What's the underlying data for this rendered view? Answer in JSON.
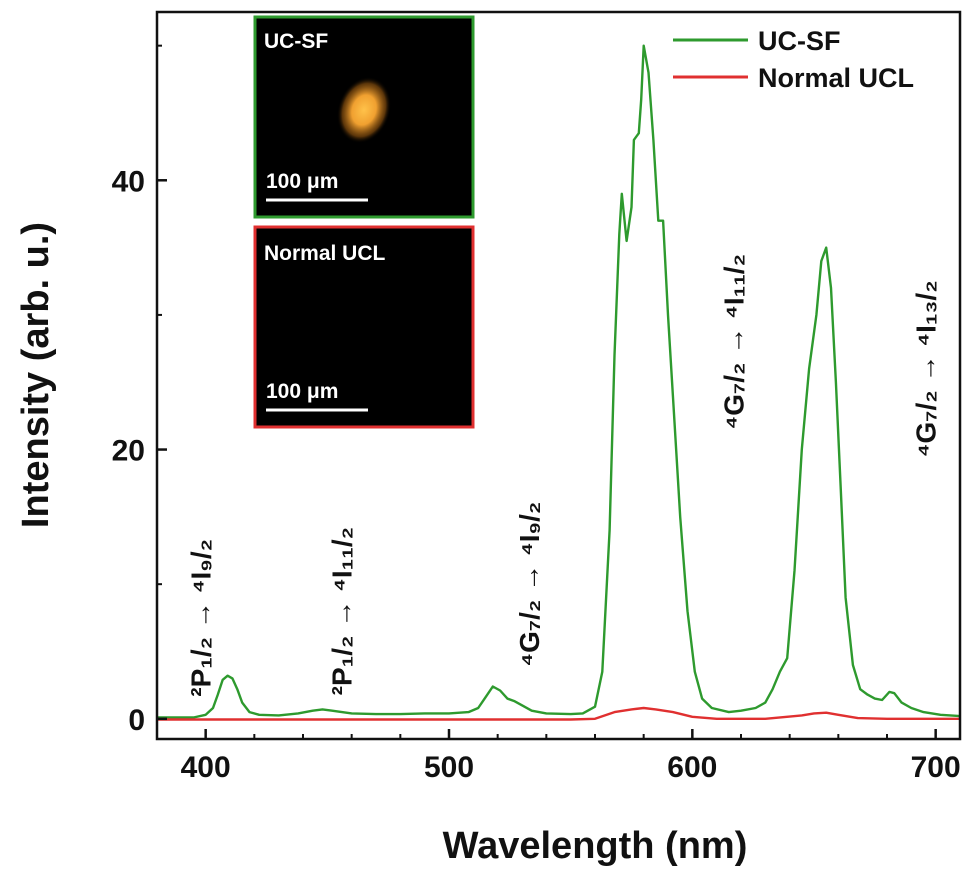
{
  "chart_data": {
    "type": "line",
    "xlabel": "Wavelength (nm)",
    "ylabel": "Intensity (arb. u.)",
    "xlim": [
      380,
      710
    ],
    "ylim": [
      -1.5,
      52.5
    ],
    "x_ticks": [
      400,
      500,
      600,
      700
    ],
    "y_ticks": [
      0,
      20,
      40
    ],
    "grid": false,
    "legend_position": "top-right",
    "series": [
      {
        "name": "UC-SF",
        "color": "#2e9a2e",
        "points": [
          [
            380,
            0.1
          ],
          [
            395,
            0.1
          ],
          [
            400,
            0.3
          ],
          [
            403,
            0.8
          ],
          [
            405,
            1.8
          ],
          [
            407,
            2.9
          ],
          [
            409,
            3.2
          ],
          [
            411,
            3.0
          ],
          [
            413,
            2.2
          ],
          [
            415,
            1.2
          ],
          [
            418,
            0.5
          ],
          [
            422,
            0.3
          ],
          [
            430,
            0.25
          ],
          [
            438,
            0.4
          ],
          [
            444,
            0.6
          ],
          [
            448,
            0.7
          ],
          [
            452,
            0.6
          ],
          [
            456,
            0.5
          ],
          [
            460,
            0.4
          ],
          [
            470,
            0.35
          ],
          [
            480,
            0.35
          ],
          [
            490,
            0.4
          ],
          [
            500,
            0.4
          ],
          [
            508,
            0.5
          ],
          [
            512,
            0.8
          ],
          [
            515,
            1.6
          ],
          [
            518,
            2.4
          ],
          [
            521,
            2.1
          ],
          [
            524,
            1.5
          ],
          [
            527,
            1.3
          ],
          [
            530,
            1.0
          ],
          [
            534,
            0.6
          ],
          [
            540,
            0.4
          ],
          [
            550,
            0.35
          ],
          [
            555,
            0.4
          ],
          [
            560,
            0.9
          ],
          [
            563,
            3.5
          ],
          [
            566,
            14
          ],
          [
            568,
            27
          ],
          [
            570,
            36
          ],
          [
            571,
            39
          ],
          [
            573,
            35.5
          ],
          [
            575,
            38
          ],
          [
            576,
            43
          ],
          [
            578,
            43.5
          ],
          [
            579,
            46
          ],
          [
            580,
            50
          ],
          [
            582,
            48
          ],
          [
            584,
            43
          ],
          [
            586,
            37
          ],
          [
            588,
            37
          ],
          [
            590,
            30
          ],
          [
            592,
            24
          ],
          [
            595,
            15
          ],
          [
            598,
            8
          ],
          [
            601,
            3.5
          ],
          [
            604,
            1.5
          ],
          [
            608,
            0.8
          ],
          [
            615,
            0.5
          ],
          [
            620,
            0.6
          ],
          [
            626,
            0.8
          ],
          [
            630,
            1.2
          ],
          [
            633,
            2.2
          ],
          [
            636,
            3.5
          ],
          [
            639,
            4.5
          ],
          [
            642,
            11
          ],
          [
            645,
            20
          ],
          [
            648,
            26
          ],
          [
            651,
            30
          ],
          [
            653,
            34
          ],
          [
            655,
            35
          ],
          [
            657,
            32
          ],
          [
            659,
            25
          ],
          [
            661,
            17
          ],
          [
            663,
            9
          ],
          [
            666,
            4
          ],
          [
            669,
            2.2
          ],
          [
            672,
            1.8
          ],
          [
            675,
            1.5
          ],
          [
            678,
            1.4
          ],
          [
            681,
            2.0
          ],
          [
            683,
            1.9
          ],
          [
            686,
            1.2
          ],
          [
            690,
            0.8
          ],
          [
            695,
            0.5
          ],
          [
            702,
            0.3
          ],
          [
            710,
            0.2
          ]
        ]
      },
      {
        "name": "Normal UCL",
        "color": "#e03030",
        "points": [
          [
            380,
            -0.05
          ],
          [
            400,
            -0.05
          ],
          [
            450,
            -0.05
          ],
          [
            500,
            -0.05
          ],
          [
            550,
            -0.05
          ],
          [
            560,
            0.0
          ],
          [
            568,
            0.5
          ],
          [
            575,
            0.7
          ],
          [
            580,
            0.8
          ],
          [
            585,
            0.7
          ],
          [
            592,
            0.5
          ],
          [
            600,
            0.15
          ],
          [
            610,
            0.0
          ],
          [
            630,
            0.0
          ],
          [
            645,
            0.25
          ],
          [
            650,
            0.4
          ],
          [
            655,
            0.45
          ],
          [
            660,
            0.3
          ],
          [
            668,
            0.05
          ],
          [
            680,
            0.0
          ],
          [
            710,
            0.0
          ]
        ]
      }
    ],
    "annotations": [
      {
        "id": "t1",
        "x": 402,
        "y": 7.5,
        "text": "²P₁/₂ → ⁴I₉/₂"
      },
      {
        "id": "t2",
        "x": 460,
        "y": 8.0,
        "text": "²P₁/₂ → ⁴I₁₁/₂"
      },
      {
        "id": "t3",
        "x": 537,
        "y": 10.0,
        "text": "⁴G₇/₂ → ⁴I₉/₂"
      },
      {
        "id": "t4",
        "x": 621,
        "y": 28.0,
        "text": "⁴G₇/₂ → ⁴I₁₁/₂"
      },
      {
        "id": "t5",
        "x": 700,
        "y": 26.0,
        "text": "⁴G₇/₂ → ⁴I₁₃/₂"
      }
    ],
    "insets": [
      {
        "id": "uc-sf",
        "label": "UC-SF",
        "scale_label": "100 μm",
        "border_color": "#2e9a2e",
        "has_glow": true
      },
      {
        "id": "normal-ucl",
        "label": "Normal UCL",
        "scale_label": "100 μm",
        "border_color": "#e03030",
        "has_glow": false
      }
    ]
  }
}
